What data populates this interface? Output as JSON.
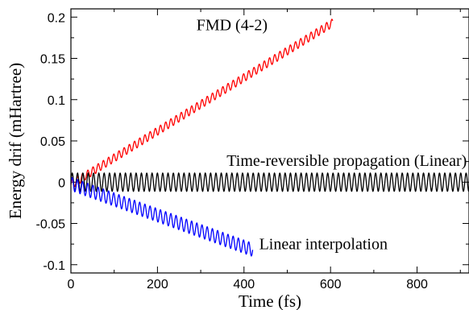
{
  "chart_data": {
    "type": "line",
    "title": "",
    "xlabel": "Time (fs)",
    "ylabel": "Energy drif (mHartree)",
    "xlim": [
      0,
      920
    ],
    "ylim": [
      -0.11,
      0.21
    ],
    "xticks": [
      0,
      200,
      400,
      600,
      800
    ],
    "xtick_labels": [
      "0",
      "200",
      "400",
      "600",
      "800"
    ],
    "yticks": [
      -0.1,
      -0.05,
      0,
      0.05,
      0.1,
      0.15,
      0.2
    ],
    "ytick_labels": [
      "-0.1",
      "-0.05",
      "0",
      "0.05",
      "0.1",
      "0.15",
      "0.2"
    ],
    "grid": false,
    "series": [
      {
        "name": "FMD (4-2)",
        "color": "#ff0000",
        "x_range": [
          0,
          605
        ],
        "trend": [
          [
            0,
            -0.003
          ],
          [
            605,
            0.193
          ]
        ],
        "oscillation_amplitude": 0.005,
        "oscillation_period_fs": 12
      },
      {
        "name": "Time-reversible propagation (Linear)",
        "color": "#000000",
        "x_range": [
          0,
          920
        ],
        "trend": [
          [
            0,
            0.0
          ],
          [
            920,
            0.0
          ]
        ],
        "oscillation_amplitude": 0.011,
        "oscillation_period_fs": 12.3
      },
      {
        "name": "Linear interpolation",
        "color": "#0000ff",
        "x_range": [
          0,
          420
        ],
        "trend": [
          [
            0,
            -0.002
          ],
          [
            420,
            -0.082
          ]
        ],
        "oscillation_amplitude": 0.008,
        "oscillation_period_fs": 12
      }
    ],
    "annotations": [
      {
        "text": "FMD (4-2)",
        "x": 290,
        "y": 0.184
      },
      {
        "text": "Time-reversible propagation (Linear)",
        "x": 360,
        "y": 0.02
      },
      {
        "text": "Linear interpolation",
        "x": 435,
        "y": -0.081
      }
    ]
  }
}
